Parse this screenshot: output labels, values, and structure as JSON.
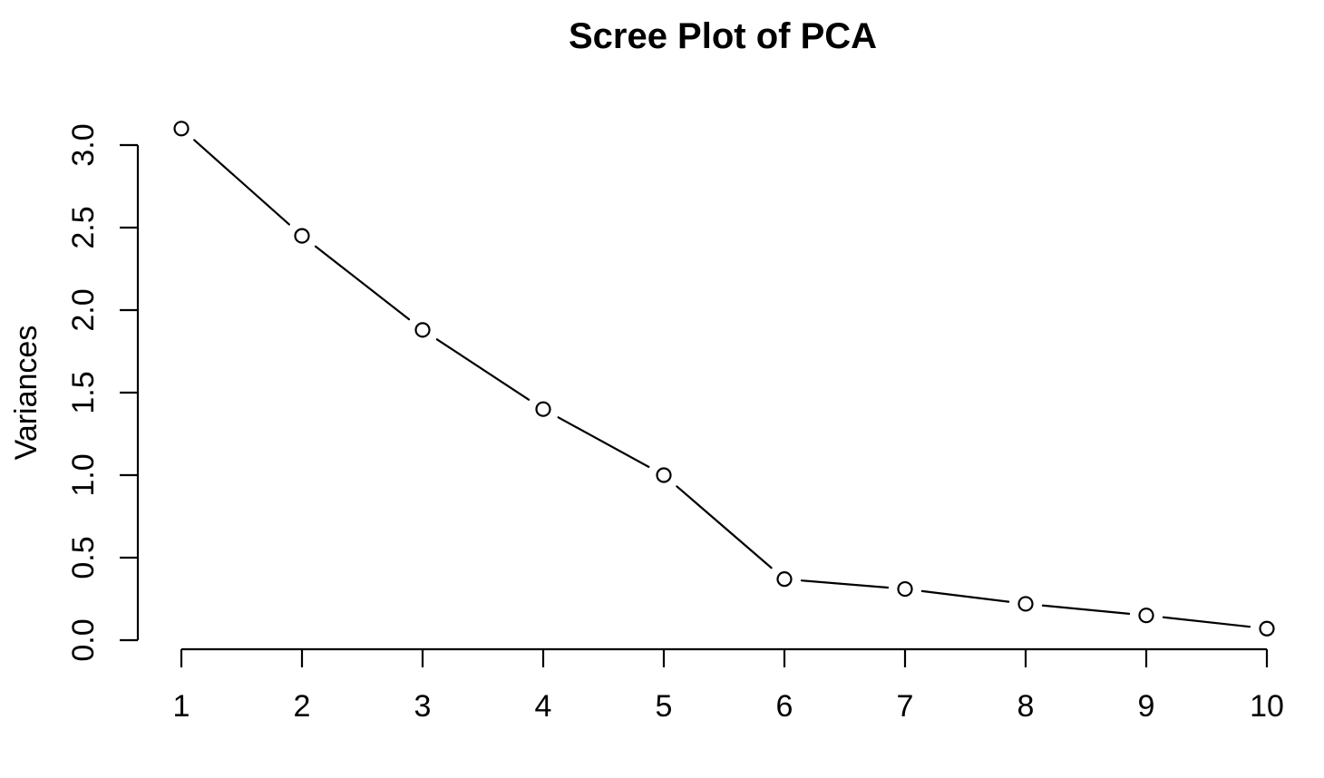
{
  "chart_data": {
    "type": "line",
    "title": "Scree Plot of PCA",
    "xlabel": "",
    "ylabel": "Variances",
    "x": [
      1,
      2,
      3,
      4,
      5,
      6,
      7,
      8,
      9,
      10
    ],
    "series": [
      {
        "name": "Variances",
        "values": [
          3.1,
          2.45,
          1.88,
          1.4,
          1.0,
          0.37,
          0.31,
          0.22,
          0.15,
          0.07
        ]
      }
    ],
    "xticks": [
      "1",
      "2",
      "3",
      "4",
      "5",
      "6",
      "7",
      "8",
      "9",
      "10"
    ],
    "yticks": [
      "0.0",
      "0.5",
      "1.0",
      "1.5",
      "2.0",
      "2.5",
      "3.0"
    ],
    "xlim": [
      1,
      10
    ],
    "ylim": [
      0.0,
      3.1
    ],
    "grid": false,
    "legend_position": "none",
    "marker": "open-circle",
    "line_style": "segments-with-point-gaps",
    "colors": {
      "background": "#ffffff",
      "line": "#000000",
      "marker_stroke": "#000000",
      "marker_fill": "#ffffff",
      "axis": "#000000",
      "text": "#000000"
    }
  }
}
